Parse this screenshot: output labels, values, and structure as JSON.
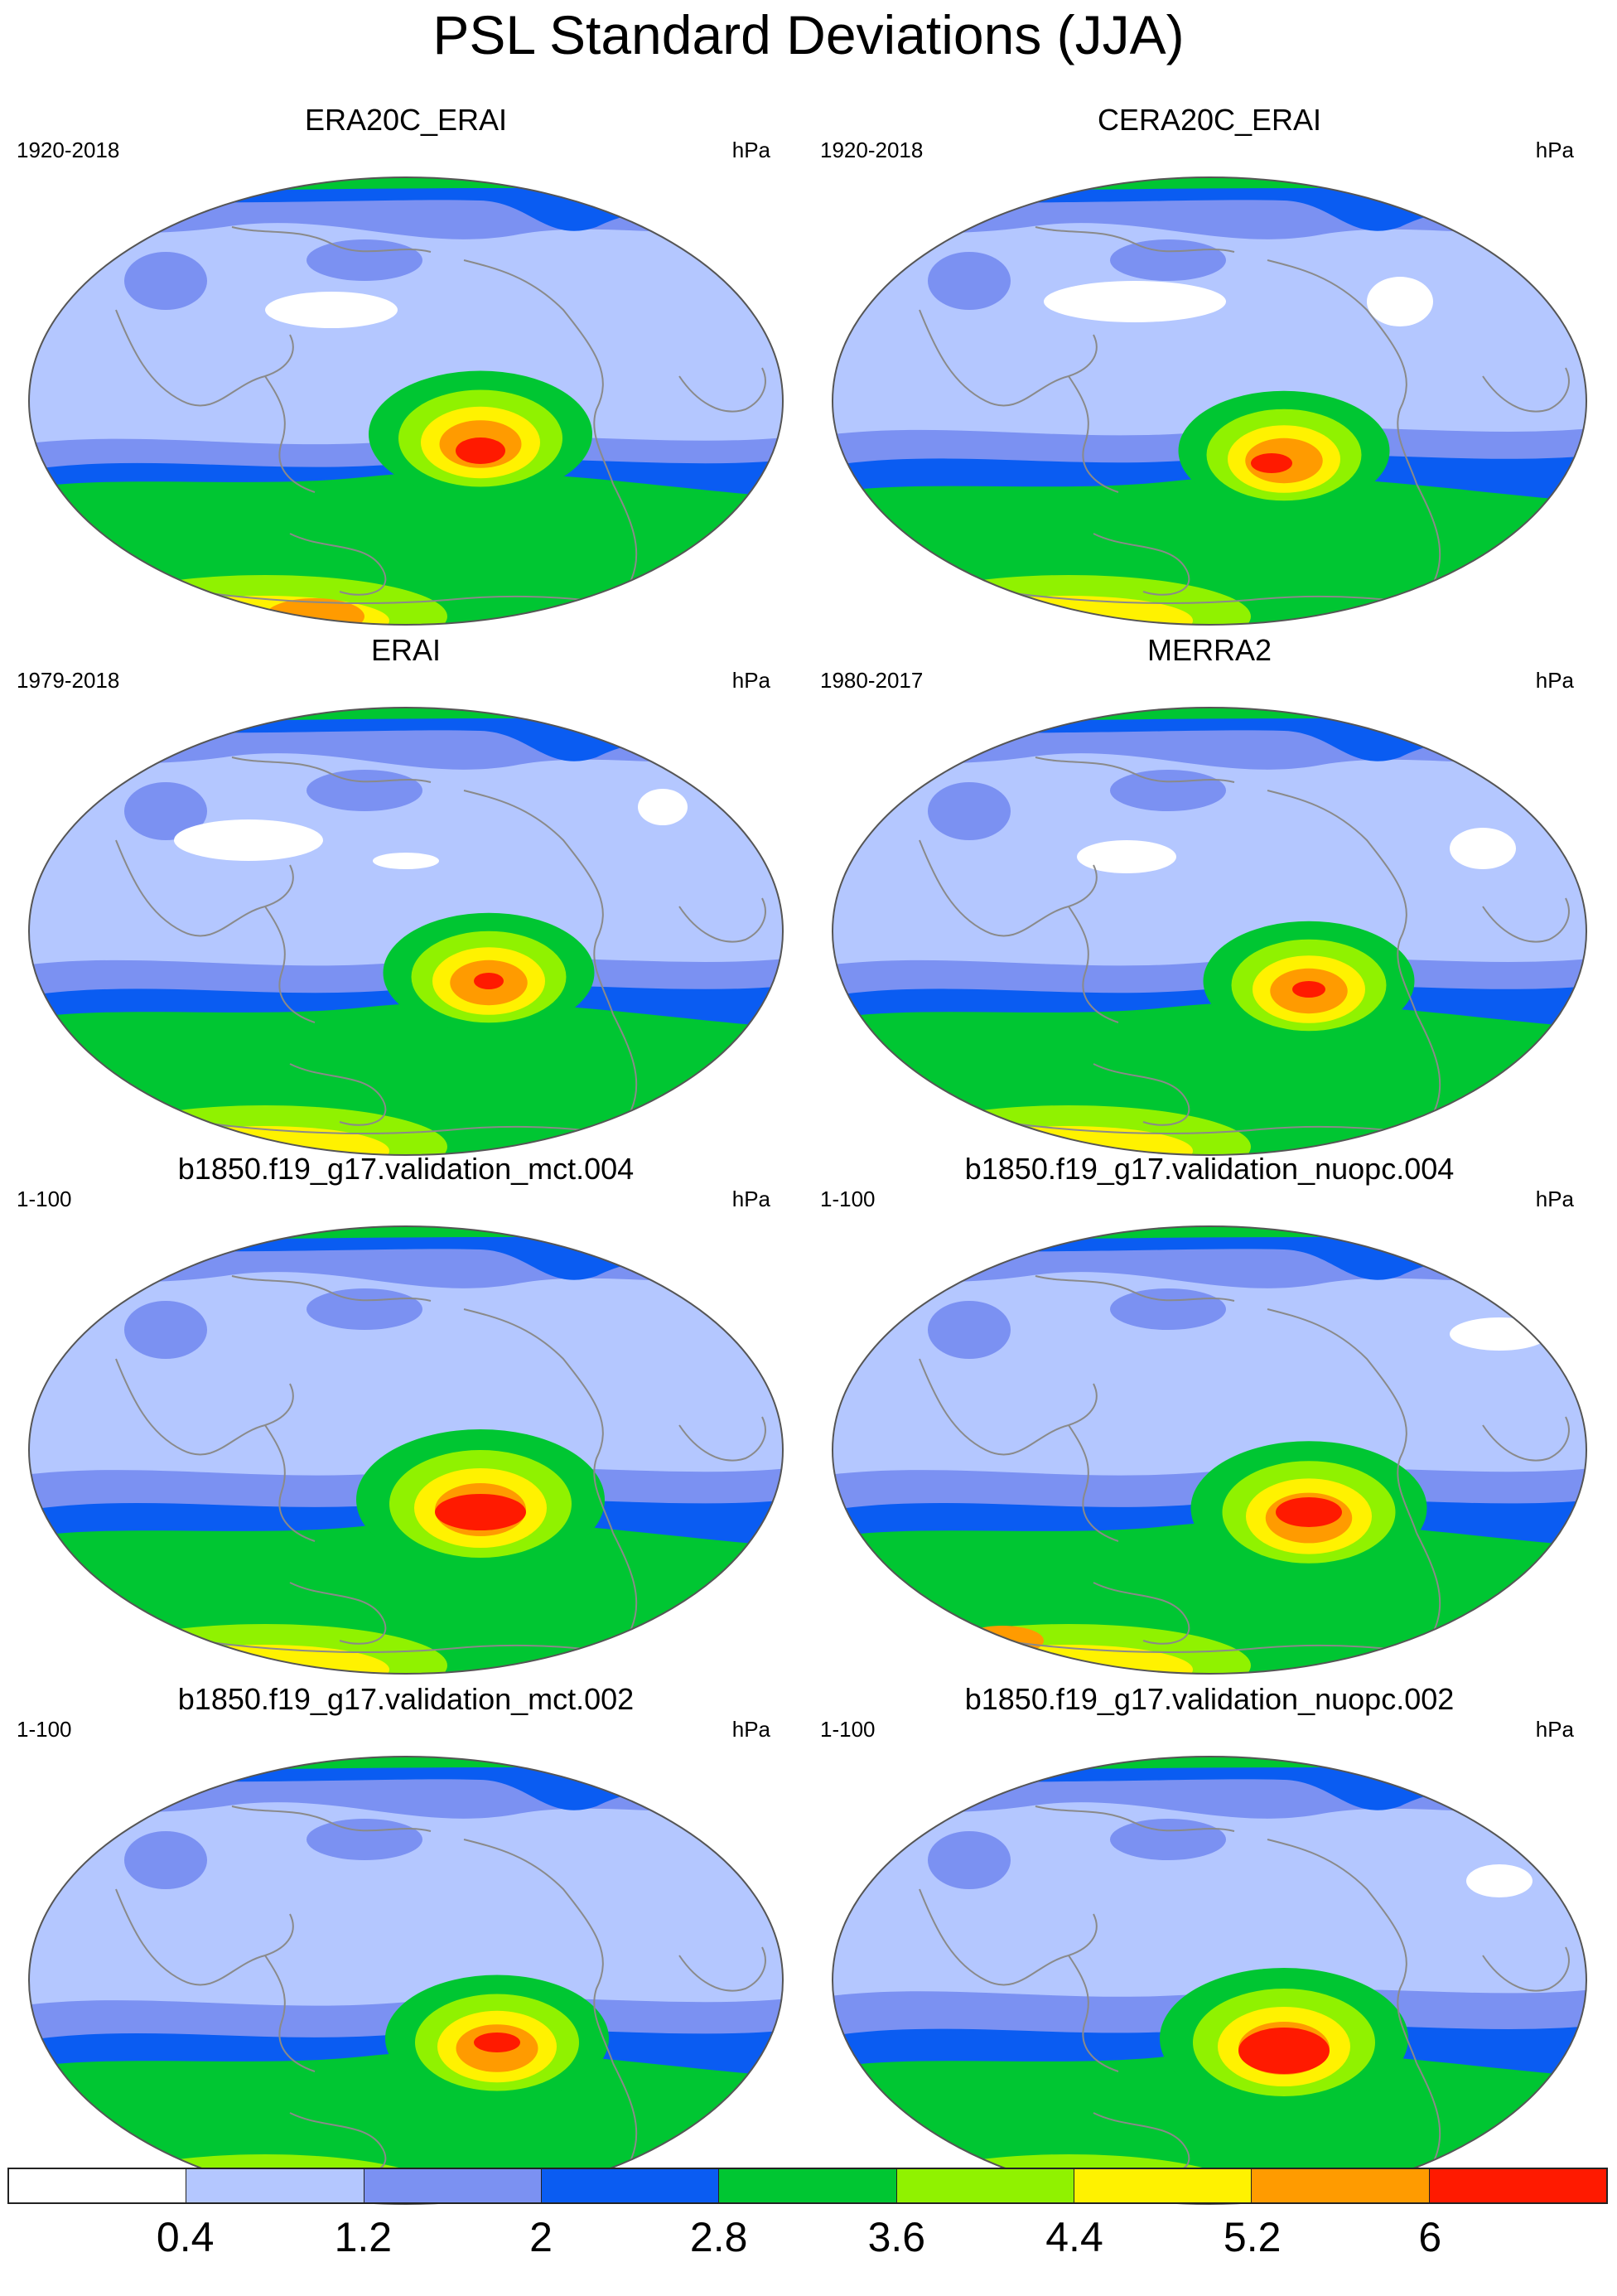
{
  "page_title": "PSL Standard Deviations (JJA)",
  "colors": {
    "levels": [
      "#ffffff",
      "#b4c7ff",
      "#7b91f2",
      "#0a5cf2",
      "#00c632",
      "#90f200",
      "#fff200",
      "#ff9b00",
      "#ff1a00"
    ],
    "coast": "#8a8a8a"
  },
  "colorbar": {
    "ticks": [
      "0.4",
      "1.2",
      "2",
      "2.8",
      "3.6",
      "4.4",
      "5.2",
      "6"
    ],
    "units": "hPa"
  },
  "panels": [
    {
      "title": "ERA20C_ERAI",
      "period": "1920-2018",
      "units": "hPa"
    },
    {
      "title": "CERA20C_ERAI",
      "period": "1920-2018",
      "units": "hPa"
    },
    {
      "title": "ERAI",
      "period": "1979-2018",
      "units": "hPa"
    },
    {
      "title": "MERRA2",
      "period": "1980-2017",
      "units": "hPa"
    },
    {
      "title": "b1850.f19_g17.validation_mct.004",
      "period": "1-100",
      "units": "hPa"
    },
    {
      "title": "b1850.f19_g17.validation_nuopc.004",
      "period": "1-100",
      "units": "hPa"
    },
    {
      "title": "b1850.f19_g17.validation_mct.002",
      "period": "1-100",
      "units": "hPa"
    },
    {
      "title": "b1850.f19_g17.validation_nuopc.002",
      "period": "1-100",
      "units": "hPa"
    }
  ]
}
